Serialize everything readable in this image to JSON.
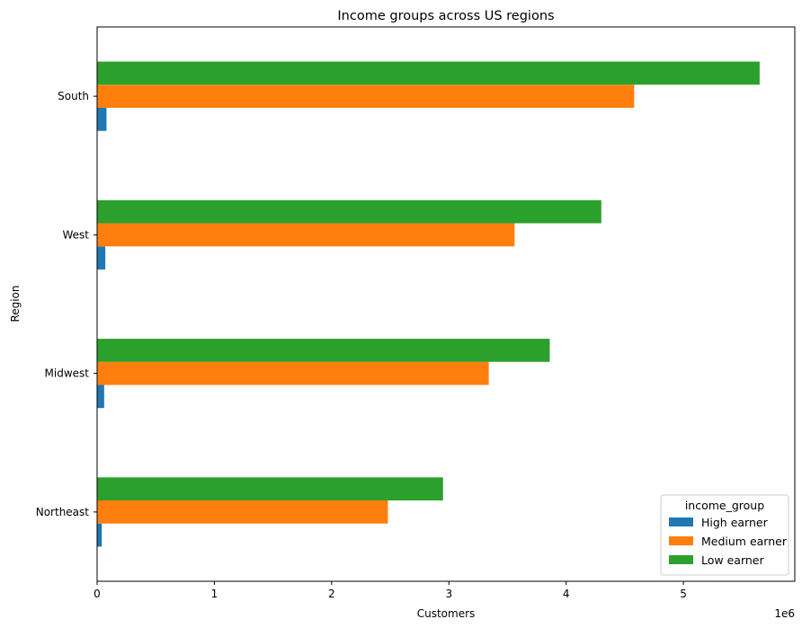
{
  "chart_data": {
    "type": "bar",
    "orientation": "horizontal",
    "title": "Income groups across US regions",
    "xlabel": "Customers",
    "ylabel": "Region",
    "offset_text": "1e6",
    "xlim": [
      0,
      5.95
    ],
    "xticks": [
      0,
      1,
      2,
      3,
      4,
      5
    ],
    "x_scale_factor": 1000000,
    "categories": [
      "Northeast",
      "Midwest",
      "West",
      "South"
    ],
    "series": [
      {
        "name": "High earner",
        "color": "#1f77b4",
        "values": [
          0.04,
          0.06,
          0.07,
          0.08
        ]
      },
      {
        "name": "Medium earner",
        "color": "#ff7f0e",
        "values": [
          2.48,
          3.34,
          3.56,
          4.58
        ]
      },
      {
        "name": "Low earner",
        "color": "#2ca02c",
        "values": [
          2.95,
          3.86,
          4.3,
          5.65
        ]
      }
    ],
    "legend": {
      "title": "income_group",
      "placement": "lower-right"
    },
    "grid": false
  }
}
